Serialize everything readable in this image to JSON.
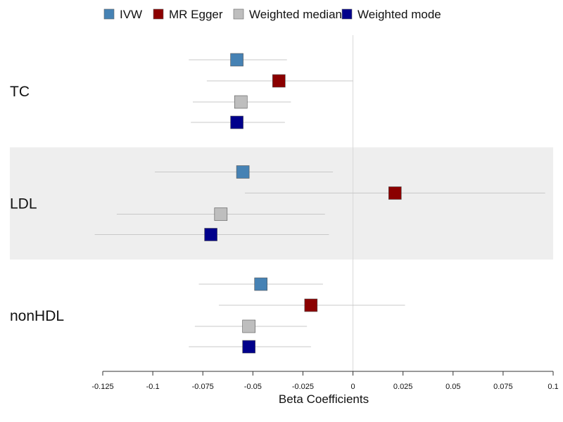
{
  "chart_data": {
    "type": "forest",
    "xlabel": "Beta Coefficients",
    "xlim": [
      -0.125,
      0.1
    ],
    "xticks": [
      {
        "value": -0.125,
        "label": "-0.125"
      },
      {
        "value": -0.1,
        "label": "-0.1"
      },
      {
        "value": -0.075,
        "label": "-0.075"
      },
      {
        "value": -0.05,
        "label": "-0.05"
      },
      {
        "value": -0.025,
        "label": "-0.025"
      },
      {
        "value": 0,
        "label": "0"
      },
      {
        "value": 0.025,
        "label": "0.025"
      },
      {
        "value": 0.05,
        "label": "0.05"
      },
      {
        "value": 0.075,
        "label": "0.075"
      },
      {
        "value": 0.1,
        "label": "0.1"
      }
    ],
    "reference_line": 0,
    "legend_position": "top",
    "methods": [
      {
        "key": "ivw",
        "name": "IVW",
        "color": "#4682B4"
      },
      {
        "key": "egger",
        "name": "MR Egger",
        "color": "#8B0000"
      },
      {
        "key": "wmedian",
        "name": "Weighted median",
        "color": "#BEBEBE"
      },
      {
        "key": "wmode",
        "name": "Weighted mode",
        "color": "#00008B"
      }
    ],
    "groups": [
      {
        "name": "TC",
        "shaded": false,
        "estimates": [
          {
            "method": "ivw",
            "beta": -0.058,
            "lower": -0.082,
            "upper": -0.033
          },
          {
            "method": "egger",
            "beta": -0.037,
            "lower": -0.073,
            "upper": 0.0
          },
          {
            "method": "wmedian",
            "beta": -0.056,
            "lower": -0.08,
            "upper": -0.031
          },
          {
            "method": "wmode",
            "beta": -0.058,
            "lower": -0.081,
            "upper": -0.034
          }
        ]
      },
      {
        "name": "LDL",
        "shaded": true,
        "estimates": [
          {
            "method": "ivw",
            "beta": -0.055,
            "lower": -0.099,
            "upper": -0.01
          },
          {
            "method": "egger",
            "beta": 0.021,
            "lower": -0.054,
            "upper": 0.096
          },
          {
            "method": "wmedian",
            "beta": -0.066,
            "lower": -0.118,
            "upper": -0.014
          },
          {
            "method": "wmode",
            "beta": -0.071,
            "lower": -0.129,
            "upper": -0.012
          }
        ]
      },
      {
        "name": "nonHDL",
        "shaded": false,
        "estimates": [
          {
            "method": "ivw",
            "beta": -0.046,
            "lower": -0.077,
            "upper": -0.015
          },
          {
            "method": "egger",
            "beta": -0.021,
            "lower": -0.067,
            "upper": 0.026
          },
          {
            "method": "wmedian",
            "beta": -0.052,
            "lower": -0.079,
            "upper": -0.023
          },
          {
            "method": "wmode",
            "beta": -0.052,
            "lower": -0.082,
            "upper": -0.021
          }
        ]
      }
    ]
  }
}
